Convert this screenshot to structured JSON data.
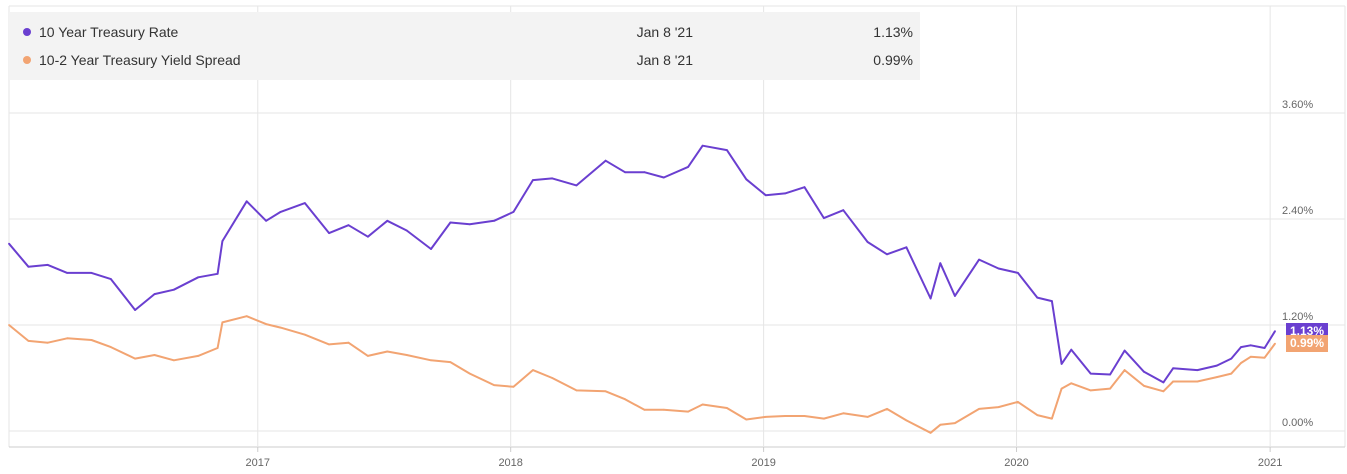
{
  "legend": {
    "rows": [
      {
        "name": "10 Year Treasury Rate",
        "date": "Jan 8 '21",
        "value": "1.13%",
        "color": "#6a3fd0"
      },
      {
        "name": "10-2 Year Treasury Yield Spread",
        "date": "Jan 8 '21",
        "value": "0.99%",
        "color": "#f2a472"
      }
    ]
  },
  "end_tags": [
    {
      "text": "1.13%",
      "color": "#6a3fd0"
    },
    {
      "text": "0.99%",
      "color": "#f2a472"
    }
  ],
  "chart_data": {
    "type": "line",
    "x_ticks": [
      "2017",
      "2018",
      "2019",
      "2020",
      "2021"
    ],
    "y_ticks": [
      "0.00%",
      "1.20%",
      "2.40%",
      "3.60%"
    ],
    "ylim": [
      -0.1,
      4.0
    ],
    "xlim": [
      "2016-01-08",
      "2021-01-08"
    ],
    "grid": true,
    "series": [
      {
        "name": "10 Year Treasury Rate",
        "color": "#6a3fd0",
        "points": [
          [
            "2016-01-08",
            2.12
          ],
          [
            "2016-02-05",
            1.86
          ],
          [
            "2016-03-04",
            1.88
          ],
          [
            "2016-04-01",
            1.79
          ],
          [
            "2016-05-06",
            1.79
          ],
          [
            "2016-06-03",
            1.72
          ],
          [
            "2016-07-08",
            1.37
          ],
          [
            "2016-08-05",
            1.55
          ],
          [
            "2016-09-02",
            1.6
          ],
          [
            "2016-10-07",
            1.74
          ],
          [
            "2016-11-04",
            1.78
          ],
          [
            "2016-11-11",
            2.15
          ],
          [
            "2016-12-16",
            2.6
          ],
          [
            "2017-01-13",
            2.38
          ],
          [
            "2017-02-03",
            2.48
          ],
          [
            "2017-03-10",
            2.58
          ],
          [
            "2017-04-14",
            2.24
          ],
          [
            "2017-05-12",
            2.33
          ],
          [
            "2017-06-09",
            2.2
          ],
          [
            "2017-07-07",
            2.38
          ],
          [
            "2017-08-04",
            2.27
          ],
          [
            "2017-09-08",
            2.06
          ],
          [
            "2017-10-06",
            2.36
          ],
          [
            "2017-11-03",
            2.34
          ],
          [
            "2017-12-08",
            2.38
          ],
          [
            "2018-01-05",
            2.48
          ],
          [
            "2018-02-02",
            2.84
          ],
          [
            "2018-03-02",
            2.86
          ],
          [
            "2018-04-06",
            2.78
          ],
          [
            "2018-05-18",
            3.06
          ],
          [
            "2018-06-15",
            2.93
          ],
          [
            "2018-07-13",
            2.93
          ],
          [
            "2018-08-10",
            2.87
          ],
          [
            "2018-09-14",
            2.99
          ],
          [
            "2018-10-05",
            3.23
          ],
          [
            "2018-11-09",
            3.18
          ],
          [
            "2018-12-07",
            2.85
          ],
          [
            "2019-01-04",
            2.67
          ],
          [
            "2019-02-01",
            2.69
          ],
          [
            "2019-03-01",
            2.76
          ],
          [
            "2019-03-29",
            2.41
          ],
          [
            "2019-04-26",
            2.5
          ],
          [
            "2019-05-31",
            2.14
          ],
          [
            "2019-06-28",
            2.0
          ],
          [
            "2019-07-26",
            2.08
          ],
          [
            "2019-08-30",
            1.5
          ],
          [
            "2019-09-13",
            1.9
          ],
          [
            "2019-10-04",
            1.53
          ],
          [
            "2019-11-08",
            1.94
          ],
          [
            "2019-12-06",
            1.84
          ],
          [
            "2020-01-03",
            1.79
          ],
          [
            "2020-01-31",
            1.51
          ],
          [
            "2020-02-21",
            1.47
          ],
          [
            "2020-03-06",
            0.76
          ],
          [
            "2020-03-20",
            0.92
          ],
          [
            "2020-04-17",
            0.65
          ],
          [
            "2020-05-15",
            0.64
          ],
          [
            "2020-06-05",
            0.91
          ],
          [
            "2020-07-03",
            0.67
          ],
          [
            "2020-07-31",
            0.55
          ],
          [
            "2020-08-14",
            0.71
          ],
          [
            "2020-09-18",
            0.69
          ],
          [
            "2020-10-16",
            0.74
          ],
          [
            "2020-11-06",
            0.82
          ],
          [
            "2020-11-20",
            0.95
          ],
          [
            "2020-12-04",
            0.97
          ],
          [
            "2020-12-24",
            0.94
          ],
          [
            "2021-01-08",
            1.13
          ]
        ]
      },
      {
        "name": "10-2 Year Treasury Yield Spread",
        "color": "#f2a472",
        "points": [
          [
            "2016-01-08",
            1.2
          ],
          [
            "2016-02-05",
            1.02
          ],
          [
            "2016-03-04",
            1.0
          ],
          [
            "2016-04-01",
            1.05
          ],
          [
            "2016-05-06",
            1.03
          ],
          [
            "2016-06-03",
            0.95
          ],
          [
            "2016-07-08",
            0.82
          ],
          [
            "2016-08-05",
            0.86
          ],
          [
            "2016-09-02",
            0.8
          ],
          [
            "2016-10-07",
            0.85
          ],
          [
            "2016-11-04",
            0.94
          ],
          [
            "2016-11-11",
            1.23
          ],
          [
            "2016-12-16",
            1.3
          ],
          [
            "2017-01-13",
            1.21
          ],
          [
            "2017-02-03",
            1.17
          ],
          [
            "2017-03-10",
            1.09
          ],
          [
            "2017-04-14",
            0.98
          ],
          [
            "2017-05-12",
            1.0
          ],
          [
            "2017-06-09",
            0.85
          ],
          [
            "2017-07-07",
            0.9
          ],
          [
            "2017-08-04",
            0.86
          ],
          [
            "2017-09-08",
            0.8
          ],
          [
            "2017-10-06",
            0.78
          ],
          [
            "2017-11-03",
            0.65
          ],
          [
            "2017-12-08",
            0.52
          ],
          [
            "2018-01-05",
            0.5
          ],
          [
            "2018-02-02",
            0.69
          ],
          [
            "2018-03-02",
            0.6
          ],
          [
            "2018-04-06",
            0.46
          ],
          [
            "2018-05-18",
            0.45
          ],
          [
            "2018-06-15",
            0.36
          ],
          [
            "2018-07-13",
            0.24
          ],
          [
            "2018-08-10",
            0.24
          ],
          [
            "2018-09-14",
            0.22
          ],
          [
            "2018-10-05",
            0.3
          ],
          [
            "2018-11-09",
            0.26
          ],
          [
            "2018-12-07",
            0.13
          ],
          [
            "2019-01-04",
            0.16
          ],
          [
            "2019-02-01",
            0.17
          ],
          [
            "2019-03-01",
            0.17
          ],
          [
            "2019-03-29",
            0.14
          ],
          [
            "2019-04-26",
            0.2
          ],
          [
            "2019-05-31",
            0.16
          ],
          [
            "2019-06-28",
            0.25
          ],
          [
            "2019-07-26",
            0.12
          ],
          [
            "2019-08-30",
            -0.02
          ],
          [
            "2019-09-13",
            0.07
          ],
          [
            "2019-10-04",
            0.09
          ],
          [
            "2019-11-08",
            0.25
          ],
          [
            "2019-12-06",
            0.27
          ],
          [
            "2020-01-03",
            0.33
          ],
          [
            "2020-01-31",
            0.18
          ],
          [
            "2020-02-21",
            0.14
          ],
          [
            "2020-03-06",
            0.48
          ],
          [
            "2020-03-20",
            0.54
          ],
          [
            "2020-04-17",
            0.46
          ],
          [
            "2020-05-15",
            0.48
          ],
          [
            "2020-06-05",
            0.69
          ],
          [
            "2020-07-03",
            0.51
          ],
          [
            "2020-07-31",
            0.45
          ],
          [
            "2020-08-14",
            0.56
          ],
          [
            "2020-09-18",
            0.56
          ],
          [
            "2020-10-16",
            0.61
          ],
          [
            "2020-11-06",
            0.65
          ],
          [
            "2020-11-20",
            0.77
          ],
          [
            "2020-12-04",
            0.84
          ],
          [
            "2020-12-24",
            0.83
          ],
          [
            "2021-01-08",
            0.99
          ]
        ]
      }
    ]
  }
}
